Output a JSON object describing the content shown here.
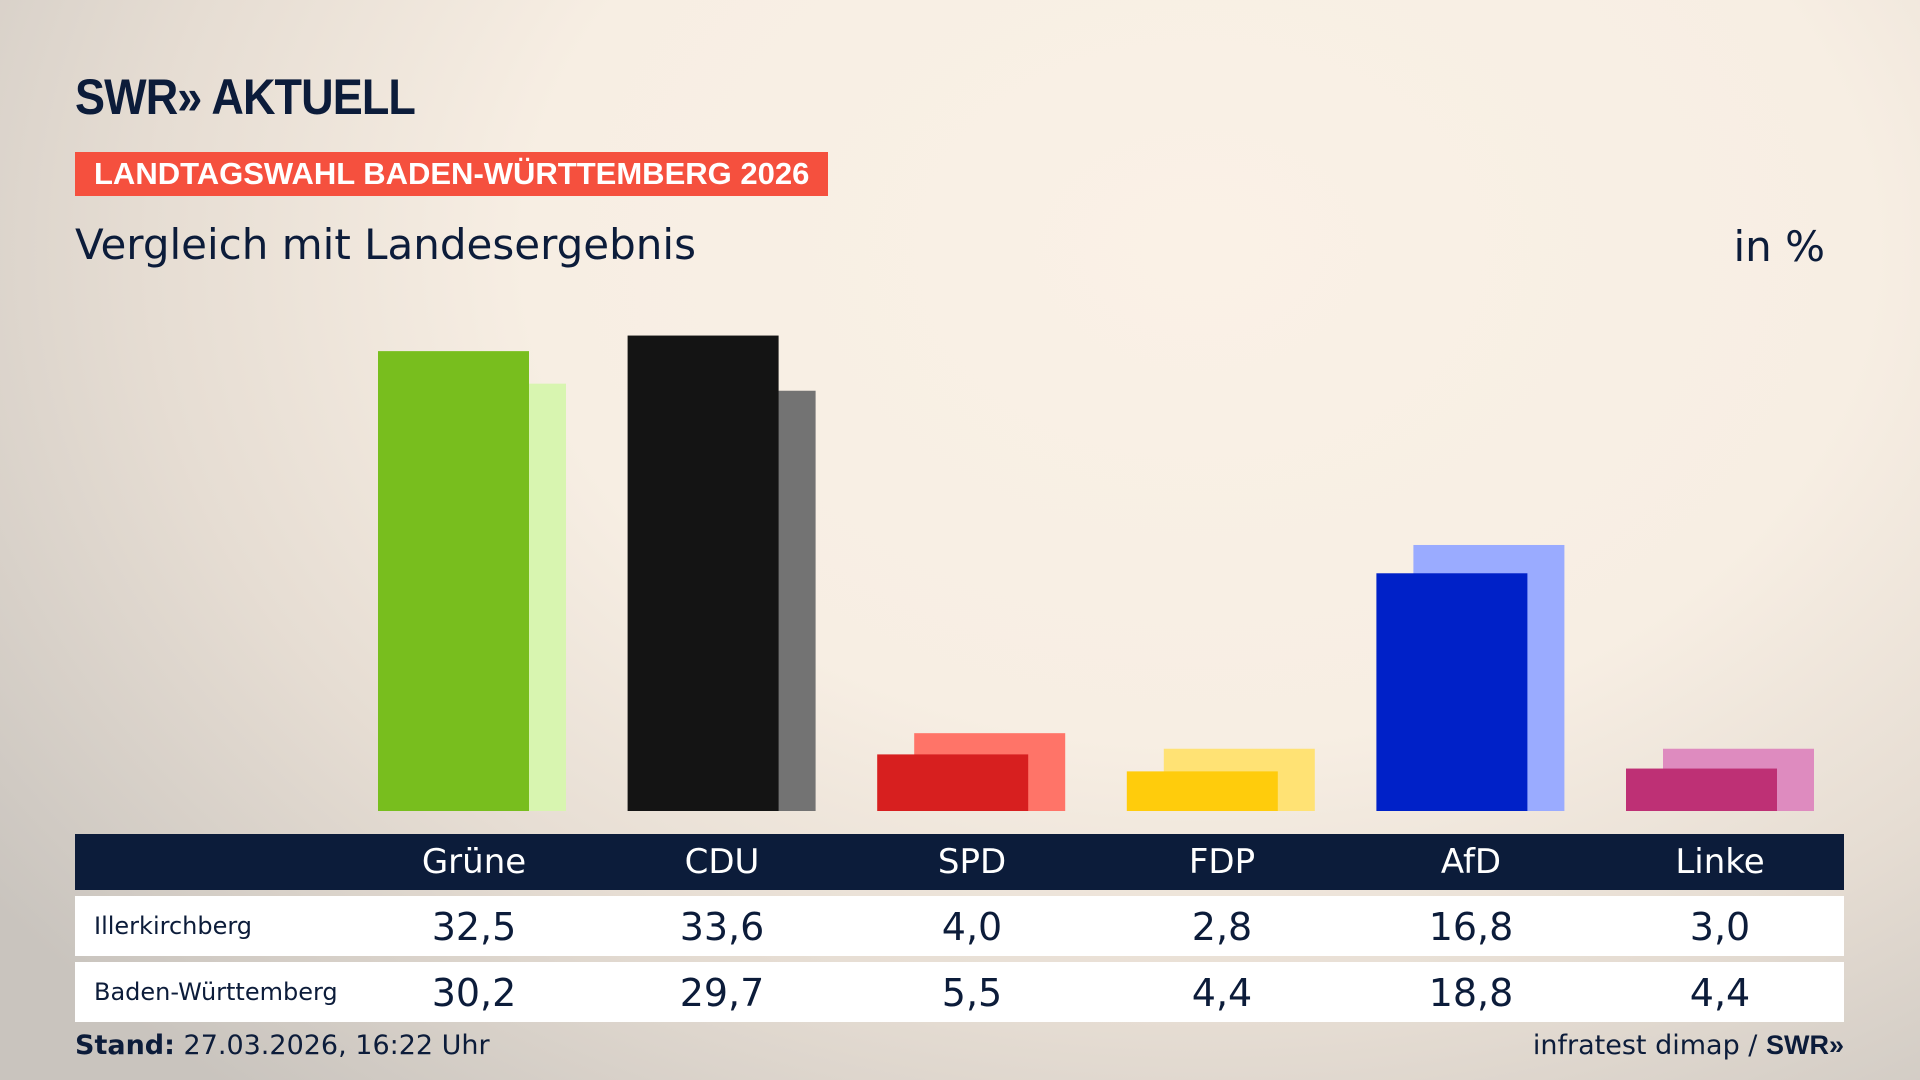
{
  "header": {
    "logo": "SWR» AKTUELL",
    "banner": "LANDTAGSWAHL BADEN-WÜRTTEMBERG 2026",
    "subtitle": "Vergleich mit Landesergebnis",
    "unit": "in %"
  },
  "chart_data": {
    "type": "bar",
    "title": "Vergleich mit Landesergebnis",
    "ylabel": "in %",
    "categories": [
      "Grüne",
      "CDU",
      "SPD",
      "FDP",
      "AfD",
      "Linke"
    ],
    "series": [
      {
        "name": "Illerkirchberg",
        "values": [
          32.5,
          33.6,
          4.0,
          2.8,
          16.8,
          3.0
        ],
        "display": [
          "32,5",
          "33,6",
          "4,0",
          "2,8",
          "16,8",
          "3,0"
        ],
        "colors": [
          "#78be1e",
          "#141414",
          "#d71f1f",
          "#ffcc0c",
          "#0021c8",
          "#be3075"
        ]
      },
      {
        "name": "Baden-Württemberg",
        "values": [
          30.2,
          29.7,
          5.5,
          4.4,
          18.8,
          4.4
        ],
        "display": [
          "30,2",
          "29,7",
          "5,5",
          "4,4",
          "18,8",
          "4,4"
        ],
        "colors": [
          "#d8f5b0",
          "#737373",
          "#ff7468",
          "#ffe274",
          "#9aabff",
          "#de8bbf"
        ]
      }
    ],
    "grid": false
  },
  "footer": {
    "stand_label": "Stand:",
    "stand_value": "27.03.2026, 16:22 Uhr",
    "source": "infratest dimap / ",
    "source_logo": "SWR»"
  }
}
